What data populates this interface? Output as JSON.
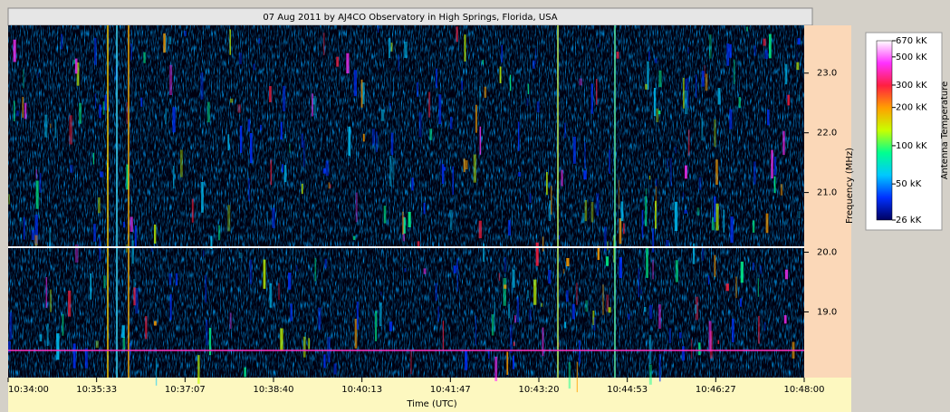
{
  "chart_data": {
    "type": "spectrogram",
    "title": "07 Aug 2011 by AJ4CO Observatory in High Springs, Florida, USA",
    "x_label": "Time (UTC)",
    "y_label": "Frequency (MHz)",
    "xticks": [
      "10:34:00",
      "10:35:33",
      "10:37:07",
      "10:38:40",
      "10:40:13",
      "10:41:47",
      "10:43:20",
      "10:44:53",
      "10:46:27",
      "10:48:00"
    ],
    "ylim": [
      17.9,
      23.8
    ],
    "yticks": [
      {
        "value": 19,
        "label": "19.0"
      },
      {
        "value": 20,
        "label": "20.0"
      },
      {
        "value": 21,
        "label": "21.0"
      },
      {
        "value": 22,
        "label": "22.0"
      },
      {
        "value": 23,
        "label": "23.0"
      }
    ],
    "colorbar": {
      "label": "Antenna Temperature",
      "scale": "log",
      "lim": [
        26,
        670
      ],
      "ticks": [
        {
          "value": 670,
          "label": "670 kK"
        },
        {
          "value": 500,
          "label": "500 kK"
        },
        {
          "value": 300,
          "label": "300 kK"
        },
        {
          "value": 200,
          "label": "200 kK"
        },
        {
          "value": 100,
          "label": "100 kK"
        },
        {
          "value": 50,
          "label": "50 kK"
        },
        {
          "value": 26,
          "label": "26 kK"
        }
      ],
      "colormap": [
        "#000060",
        "#0030ff",
        "#00c8ff",
        "#00ff90",
        "#c8ff00",
        "#ffa000",
        "#ff2040",
        "#ff30ff",
        "#ffffff"
      ]
    }
  }
}
